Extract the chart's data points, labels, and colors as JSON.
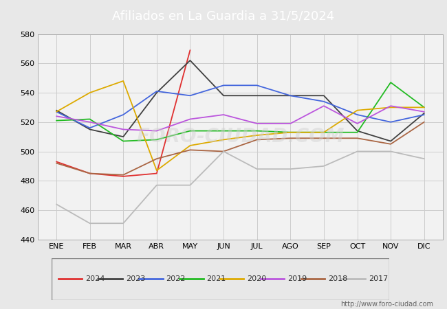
{
  "title": "Afiliados en La Guardia a 31/5/2024",
  "title_color": "#ffffff",
  "title_bg_color": "#4a8fd4",
  "months": [
    "ENE",
    "FEB",
    "MAR",
    "ABR",
    "MAY",
    "JUN",
    "JUL",
    "AGO",
    "SEP",
    "OCT",
    "NOV",
    "DIC"
  ],
  "ylim": [
    440,
    580
  ],
  "yticks": [
    440,
    460,
    480,
    500,
    520,
    540,
    560,
    580
  ],
  "series": {
    "2024": {
      "color": "#e03030",
      "data": [
        493,
        485,
        483,
        485,
        569,
        null,
        null,
        null,
        null,
        null,
        null,
        null
      ]
    },
    "2023": {
      "color": "#404040",
      "data": [
        528,
        515,
        510,
        540,
        562,
        538,
        538,
        538,
        538,
        514,
        507,
        526
      ]
    },
    "2022": {
      "color": "#4466dd",
      "data": [
        527,
        516,
        525,
        541,
        538,
        545,
        545,
        538,
        534,
        525,
        520,
        525
      ]
    },
    "2021": {
      "color": "#22bb22",
      "data": [
        521,
        522,
        507,
        508,
        514,
        514,
        514,
        513,
        513,
        513,
        547,
        530
      ]
    },
    "2020": {
      "color": "#ddaa00",
      "data": [
        527,
        540,
        548,
        487,
        504,
        508,
        511,
        513,
        513,
        528,
        530,
        530
      ]
    },
    "2019": {
      "color": "#bb55dd",
      "data": [
        524,
        520,
        515,
        514,
        522,
        525,
        519,
        519,
        531,
        519,
        531,
        527
      ]
    },
    "2018": {
      "color": "#aa6644",
      "data": [
        492,
        485,
        484,
        495,
        501,
        500,
        508,
        509,
        509,
        509,
        505,
        520
      ]
    },
    "2017": {
      "color": "#bbbbbb",
      "data": [
        464,
        451,
        451,
        477,
        477,
        500,
        488,
        488,
        490,
        500,
        500,
        495
      ]
    }
  },
  "watermark": "FORO-CIUDAD.COM",
  "url": "http://www.foro-ciudad.com",
  "bg_color": "#e8e8e8",
  "plot_bg_color": "#f2f2f2",
  "grid_color": "#cccccc",
  "legend_order": [
    "2024",
    "2023",
    "2022",
    "2021",
    "2020",
    "2019",
    "2018",
    "2017"
  ]
}
